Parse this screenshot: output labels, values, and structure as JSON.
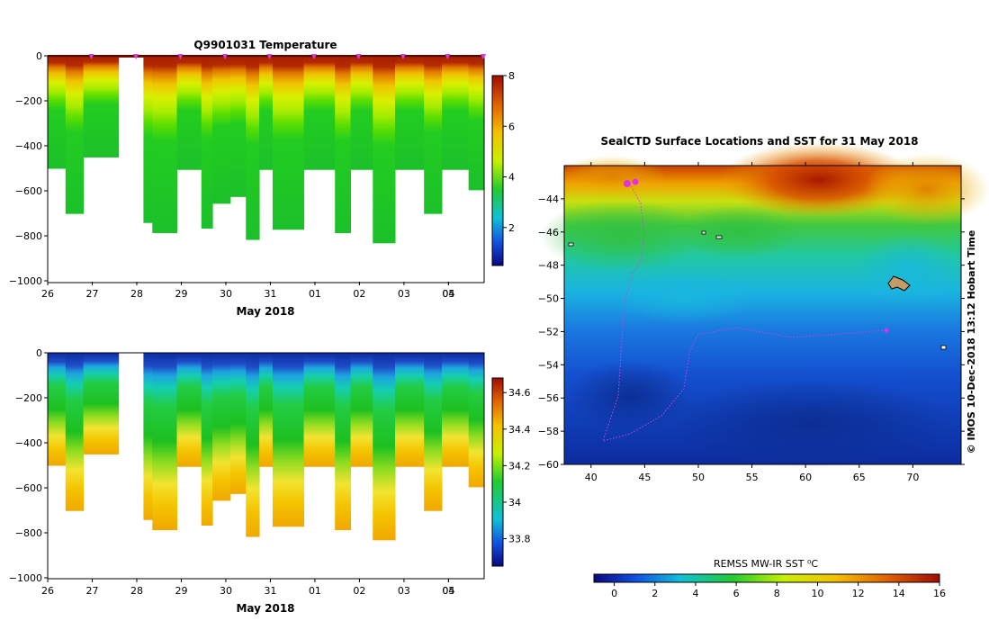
{
  "chart_data": [
    {
      "type": "heatmap",
      "title": "Q9901031  Temperature",
      "xlabel": "May 2018",
      "ylabel": "",
      "xticks": [
        "26",
        "27",
        "28",
        "29",
        "30",
        "31",
        "01",
        "02",
        "03",
        "04",
        "05"
      ],
      "yticks": [
        "0",
        "−200",
        "−400",
        "−600",
        "−800",
        "−1000"
      ],
      "ylim": [
        -1000,
        0
      ],
      "colorbar": {
        "ticks": [
          "2",
          "4",
          "6",
          "8"
        ],
        "range": [
          0.5,
          8
        ]
      },
      "profiles": [
        {
          "day": 26.0,
          "depth": 500
        },
        {
          "day": 26.4,
          "depth": 700
        },
        {
          "day": 26.8,
          "depth": 450
        },
        {
          "day": 28.15,
          "depth": 740
        },
        {
          "day": 28.35,
          "depth": 785
        },
        {
          "day": 28.9,
          "depth": 505
        },
        {
          "day": 29.45,
          "depth": 765
        },
        {
          "day": 29.7,
          "depth": 655
        },
        {
          "day": 30.1,
          "depth": 625
        },
        {
          "day": 30.45,
          "depth": 815
        },
        {
          "day": 30.75,
          "depth": 505
        },
        {
          "day": 31.05,
          "depth": 770
        },
        {
          "day": 31.75,
          "depth": 505
        },
        {
          "day": 32.45,
          "depth": 785
        },
        {
          "day": 32.8,
          "depth": 505
        },
        {
          "day": 33.3,
          "depth": 830
        },
        {
          "day": 33.8,
          "depth": 505
        },
        {
          "day": 34.45,
          "depth": 700
        },
        {
          "day": 34.85,
          "depth": 505
        },
        {
          "day": 35.45,
          "depth": 595
        }
      ]
    },
    {
      "type": "heatmap",
      "title": "",
      "xlabel": "May 2018",
      "ylabel": "",
      "xticks": [
        "26",
        "27",
        "28",
        "29",
        "30",
        "31",
        "01",
        "02",
        "03",
        "04",
        "05"
      ],
      "yticks": [
        "0",
        "−200",
        "−400",
        "−600",
        "−800",
        "−1000"
      ],
      "ylim": [
        -1000,
        0
      ],
      "colorbar": {
        "ticks": [
          "33.8",
          "34",
          "34.2",
          "34.4",
          "34.6"
        ],
        "range": [
          33.65,
          34.68
        ]
      }
    },
    {
      "type": "heatmap",
      "title": "SealCTD Surface Locations and SST for 31 May 2018",
      "xlabel": "",
      "ylabel": "",
      "xticks": [
        "40",
        "45",
        "50",
        "55",
        "60",
        "65",
        "70"
      ],
      "xlim": [
        37.5,
        74.5
      ],
      "yticks": [
        "−44",
        "−46",
        "−48",
        "−50",
        "−52",
        "−54",
        "−56",
        "−58",
        "−60"
      ],
      "ylim": [
        -60,
        -42
      ],
      "colorbar": {
        "label": "REMSS MW-IR SST ⁰C",
        "ticks": [
          "0",
          "2",
          "4",
          "6",
          "8",
          "10",
          "12",
          "14",
          "16"
        ],
        "range": [
          -1,
          16
        ]
      },
      "side_label": "© IMOS 10-Dec-2018 13:12 Hobart Time"
    }
  ]
}
